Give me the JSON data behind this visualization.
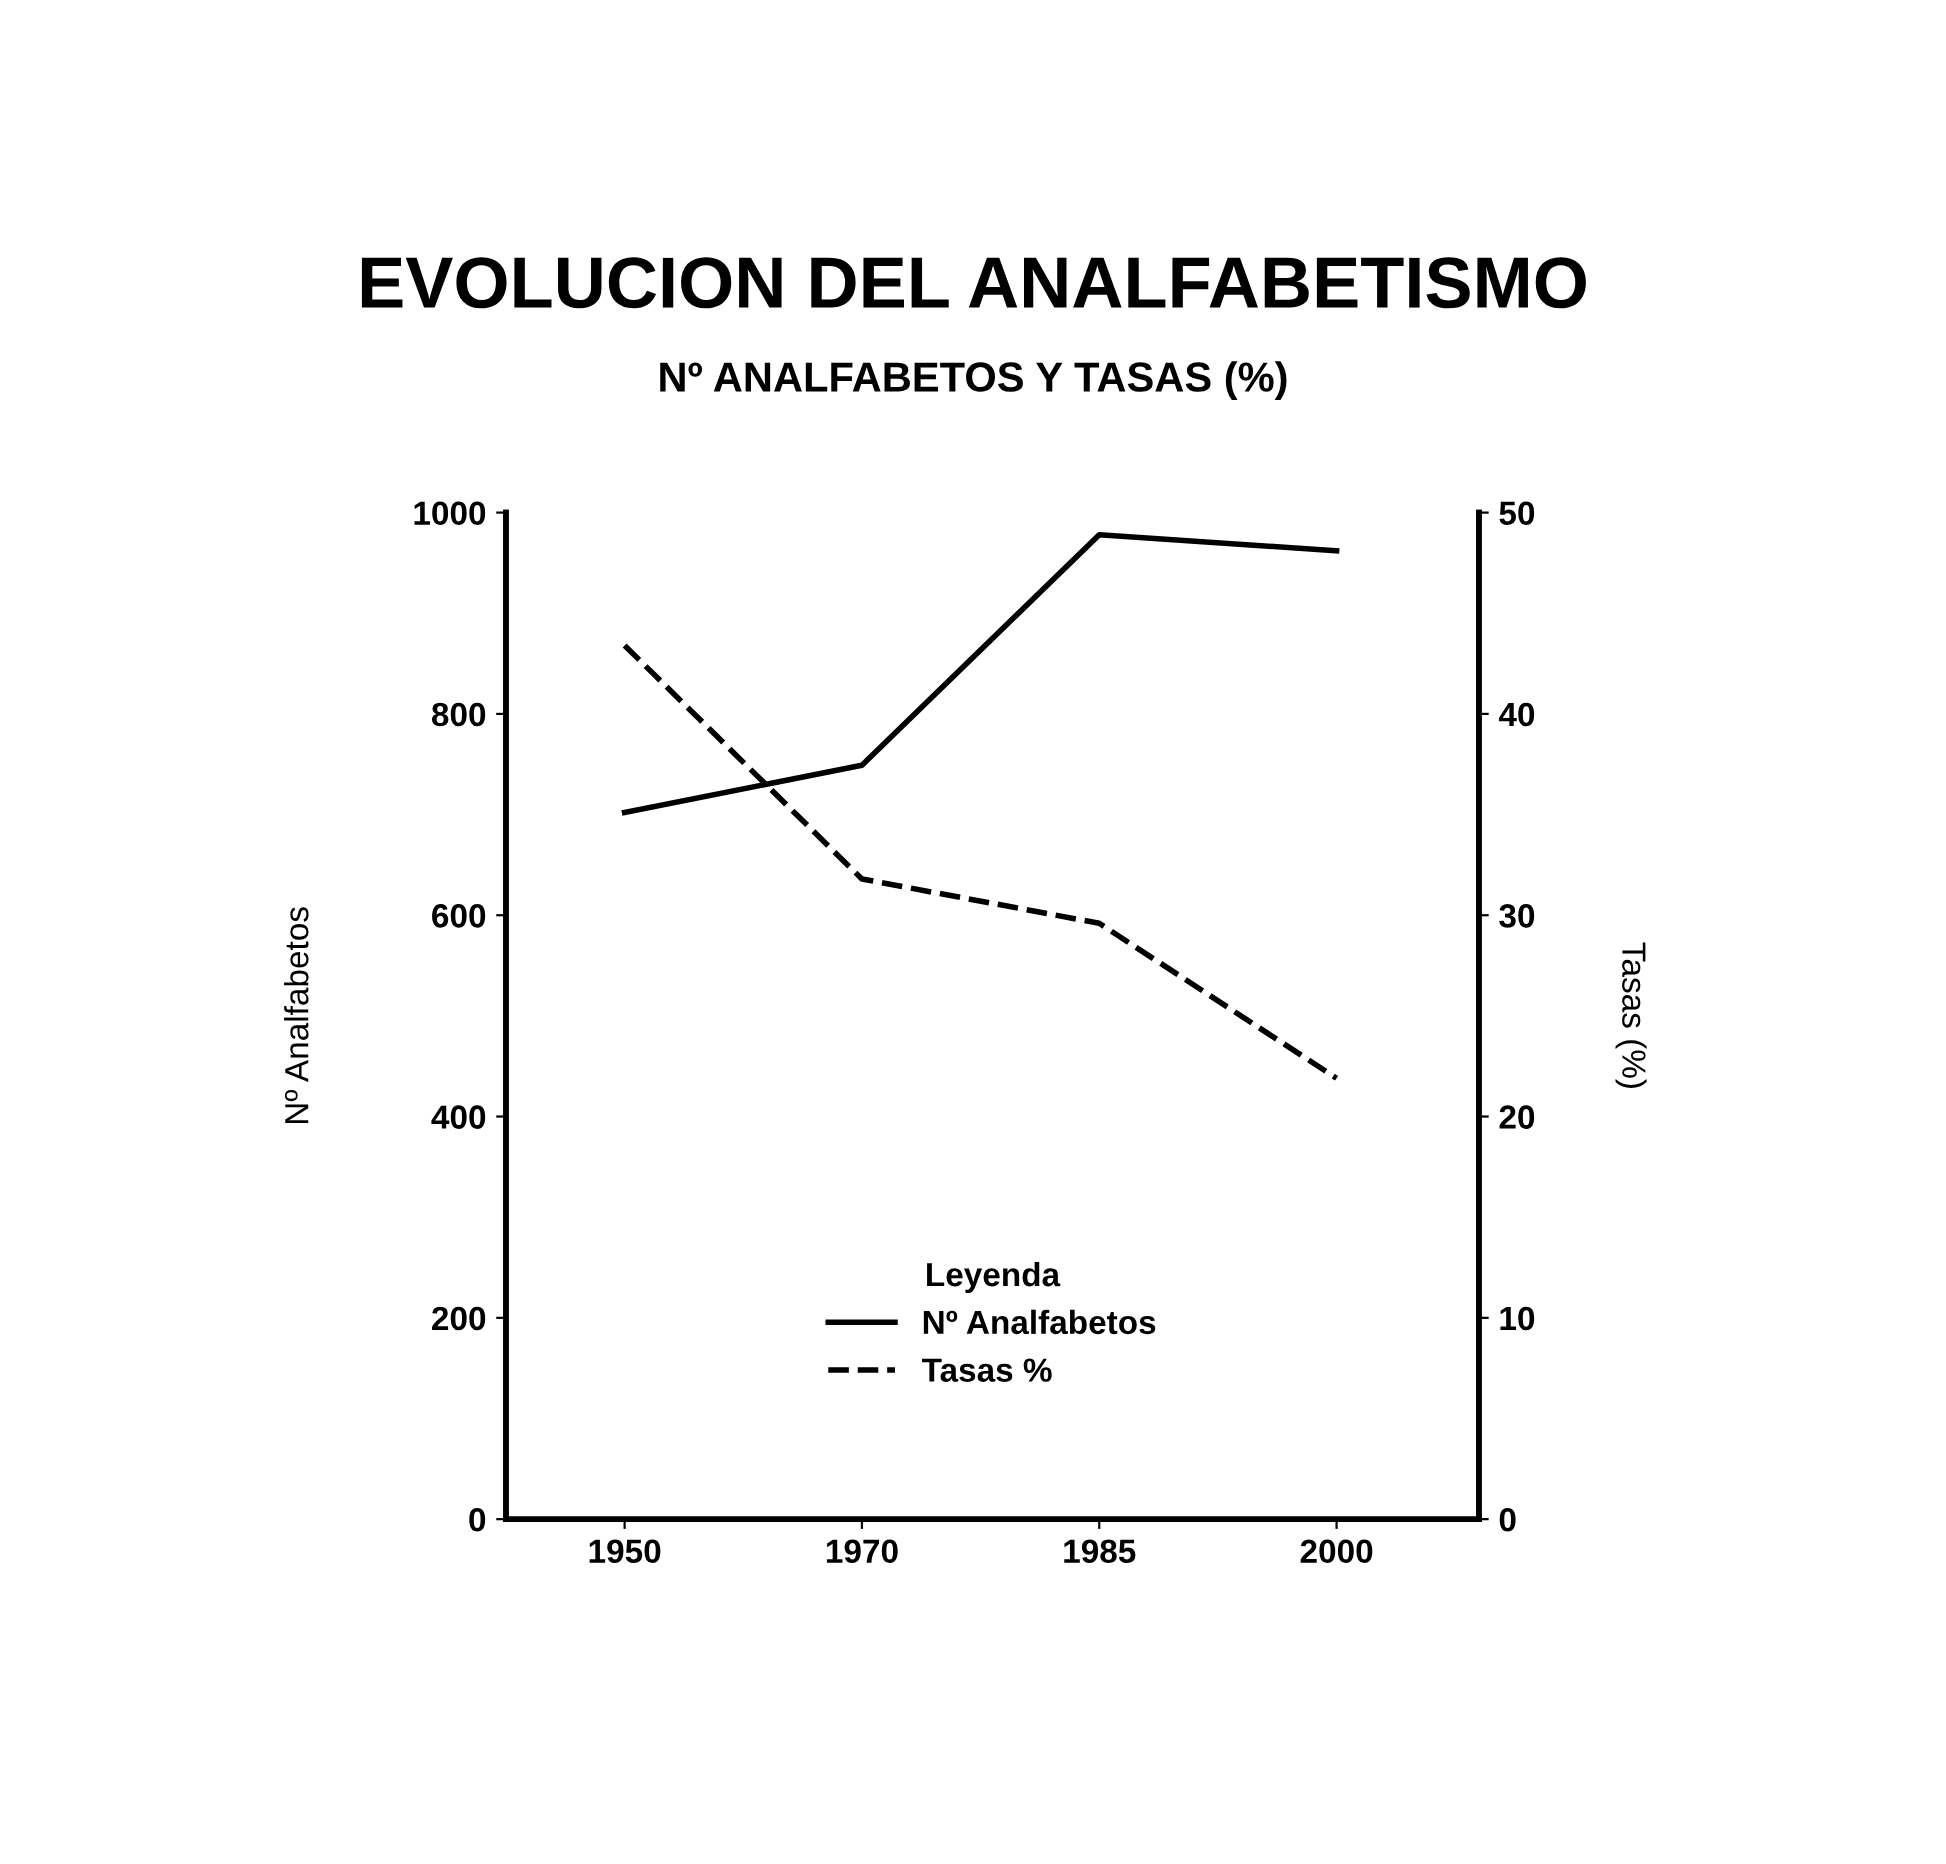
{
  "chart_data": {
    "type": "line",
    "title": "EVOLUCION DEL ANALFABETISMO",
    "subtitle": "Nº ANALFABETOS Y TASAS (%)",
    "ylabel": "Nº Analfabetos",
    "y2label": "Tasas (%)",
    "legend_title": "Leyenda",
    "categories": [
      "1950",
      "1970",
      "1985",
      "2000"
    ],
    "series": [
      {
        "name": "Nº Analfabetos",
        "color": "#000000",
        "line_style": "solid",
        "values": [
          702,
          749,
          978,
          962
        ]
      },
      {
        "name": "Tasas %",
        "color": "#000000",
        "line_style": "dashed",
        "axis": "y2",
        "values": [
          43.4,
          31.8,
          29.6,
          21.9
        ]
      }
    ],
    "ylim": [
      0,
      1000
    ],
    "yticks": [
      0,
      200,
      400,
      600,
      800,
      1000
    ],
    "y2lim": [
      0,
      50
    ],
    "y2ticks": [
      0,
      10,
      20,
      30,
      40,
      50
    ],
    "grid": false,
    "legend": "bottom",
    "marker": "none"
  }
}
